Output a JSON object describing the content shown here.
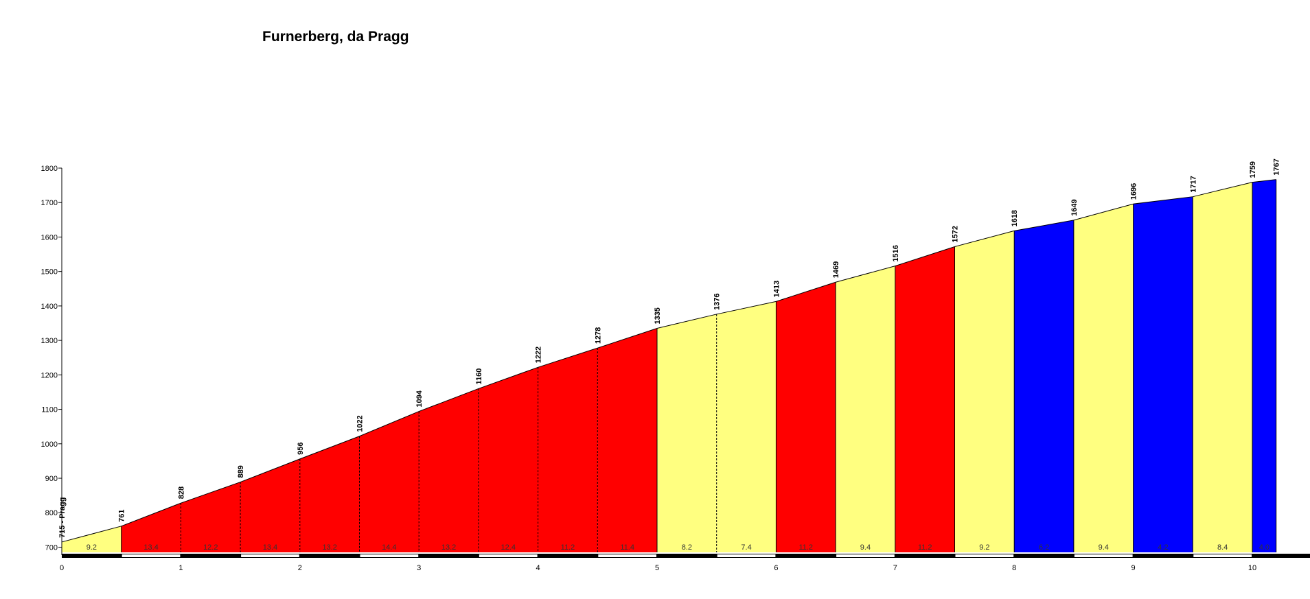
{
  "chart_data": {
    "type": "area",
    "title": "Furnerberg, da Pragg",
    "xlabel": "",
    "ylabel": "",
    "xlim": [
      0,
      10.2
    ],
    "ylim": [
      700,
      1800
    ],
    "x_ticks": [
      0,
      1,
      2,
      3,
      4,
      5,
      6,
      7,
      8,
      9,
      10
    ],
    "y_ticks": [
      700,
      800,
      900,
      1000,
      1100,
      1200,
      1300,
      1400,
      1500,
      1600,
      1700,
      1800
    ],
    "points": [
      {
        "x": 0,
        "elevation": 715,
        "label": "715 - Pragg"
      },
      {
        "x": 0.5,
        "elevation": 761,
        "label": "761"
      },
      {
        "x": 1.0,
        "elevation": 828,
        "label": "828"
      },
      {
        "x": 1.5,
        "elevation": 889,
        "label": "889"
      },
      {
        "x": 2.0,
        "elevation": 956,
        "label": "956"
      },
      {
        "x": 2.5,
        "elevation": 1022,
        "label": "1022"
      },
      {
        "x": 3.0,
        "elevation": 1094,
        "label": "1094"
      },
      {
        "x": 3.5,
        "elevation": 1160,
        "label": "1160"
      },
      {
        "x": 4.0,
        "elevation": 1222,
        "label": "1222"
      },
      {
        "x": 4.5,
        "elevation": 1278,
        "label": "1278"
      },
      {
        "x": 5.0,
        "elevation": 1335,
        "label": "1335"
      },
      {
        "x": 5.5,
        "elevation": 1376,
        "label": "1376"
      },
      {
        "x": 6.0,
        "elevation": 1413,
        "label": "1413"
      },
      {
        "x": 6.5,
        "elevation": 1469,
        "label": "1469"
      },
      {
        "x": 7.0,
        "elevation": 1516,
        "label": "1516"
      },
      {
        "x": 7.5,
        "elevation": 1572,
        "label": "1572"
      },
      {
        "x": 8.0,
        "elevation": 1618,
        "label": "1618"
      },
      {
        "x": 8.5,
        "elevation": 1649,
        "label": "1649"
      },
      {
        "x": 9.0,
        "elevation": 1696,
        "label": "1696"
      },
      {
        "x": 9.5,
        "elevation": 1717,
        "label": "1717"
      },
      {
        "x": 10.0,
        "elevation": 1759,
        "label": "1759"
      },
      {
        "x": 10.2,
        "elevation": 1767,
        "label": "1767"
      }
    ],
    "segments": [
      {
        "gradient": "9.2",
        "color": "#ffff80"
      },
      {
        "gradient": "13.4",
        "color": "#ff0000"
      },
      {
        "gradient": "12.2",
        "color": "#ff0000"
      },
      {
        "gradient": "13.4",
        "color": "#ff0000"
      },
      {
        "gradient": "13.2",
        "color": "#ff0000"
      },
      {
        "gradient": "14.4",
        "color": "#ff0000"
      },
      {
        "gradient": "13.2",
        "color": "#ff0000"
      },
      {
        "gradient": "12.4",
        "color": "#ff0000"
      },
      {
        "gradient": "11.2",
        "color": "#ff0000"
      },
      {
        "gradient": "11.4",
        "color": "#ff0000"
      },
      {
        "gradient": "8.2",
        "color": "#ffff80"
      },
      {
        "gradient": "7.4",
        "color": "#ffff80"
      },
      {
        "gradient": "11.2",
        "color": "#ff0000"
      },
      {
        "gradient": "9.4",
        "color": "#ffff80"
      },
      {
        "gradient": "11.2",
        "color": "#ff0000"
      },
      {
        "gradient": "9.2",
        "color": "#ffff80"
      },
      {
        "gradient": "6.2",
        "color": "#0000ff"
      },
      {
        "gradient": "9.4",
        "color": "#ffff80"
      },
      {
        "gradient": "4.2",
        "color": "#0000ff"
      },
      {
        "gradient": "8.4",
        "color": "#ffff80"
      },
      {
        "gradient": "4.0",
        "color": "#0000ff"
      }
    ],
    "dashed_dividers_at": [
      1.0,
      1.5,
      2.0,
      2.5,
      3.0,
      3.5,
      4.0,
      4.5,
      5.5
    ],
    "grid": false,
    "legend": "none"
  }
}
